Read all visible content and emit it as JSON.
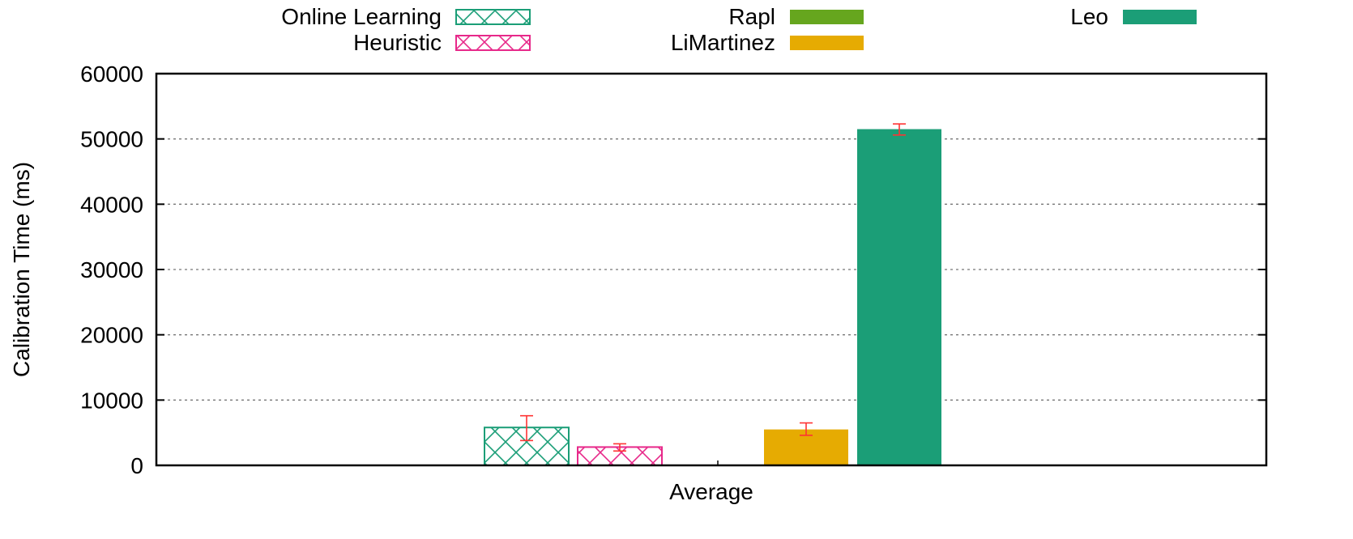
{
  "chart_data": {
    "type": "bar",
    "categories": [
      "Average"
    ],
    "xlabel": "Average",
    "ylabel": "Calibration Time (ms)",
    "ylim": [
      0,
      60000
    ],
    "yticks": [
      0,
      10000,
      20000,
      30000,
      40000,
      50000,
      60000
    ],
    "grid": "horizontal dashed",
    "legend_position": "top",
    "series": [
      {
        "name": "Online Learning",
        "value": 5800,
        "error": [
          3800,
          7600
        ],
        "color": "#1b9e77",
        "pattern": "crosshatch"
      },
      {
        "name": "Heuristic",
        "value": 2800,
        "error": [
          2200,
          3300
        ],
        "color": "#e7298a",
        "pattern": "crosshatch"
      },
      {
        "name": "Rapl",
        "value": 0,
        "error": null,
        "color": "#66a61e",
        "pattern": "solid"
      },
      {
        "name": "LiMartinez",
        "value": 5500,
        "error": [
          4600,
          6500
        ],
        "color": "#e6ab02",
        "pattern": "solid"
      },
      {
        "name": "Leo",
        "value": 51500,
        "error": [
          50600,
          52300
        ],
        "color": "#1b9e77",
        "pattern": "solid"
      }
    ],
    "error_bar_color": "#ff3333"
  }
}
